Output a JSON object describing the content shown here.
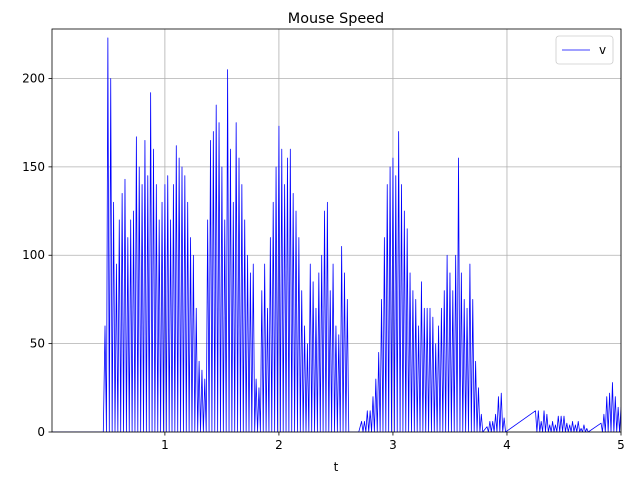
{
  "chart_data": {
    "type": "line",
    "title": "Mouse Speed",
    "x_label": "t",
    "xlim": [
      0.01,
      5
    ],
    "ylim": [
      0,
      228
    ],
    "xticks": [
      1,
      2,
      3,
      4,
      5
    ],
    "yticks": [
      0,
      50,
      100,
      150,
      200
    ],
    "grid": true,
    "legend_loc": "upper right",
    "x": [
      0.01,
      0.46,
      0.475,
      0.4875,
      0.5,
      0.5125,
      0.525,
      0.5375,
      0.55,
      0.5625,
      0.575,
      0.5875,
      0.6,
      0.6125,
      0.625,
      0.6375,
      0.65,
      0.6625,
      0.675,
      0.6875,
      0.7,
      0.7125,
      0.725,
      0.7375,
      0.75,
      0.7625,
      0.775,
      0.7875,
      0.8,
      0.8125,
      0.825,
      0.8375,
      0.85,
      0.8625,
      0.875,
      0.8875,
      0.9,
      0.9125,
      0.925,
      0.9375,
      0.95,
      0.9625,
      0.975,
      0.9875,
      1,
      1.0125,
      1.025,
      1.0375,
      1.05,
      1.0625,
      1.075,
      1.0875,
      1.1,
      1.1125,
      1.125,
      1.1375,
      1.15,
      1.1625,
      1.175,
      1.1875,
      1.2,
      1.2125,
      1.225,
      1.2375,
      1.25,
      1.2625,
      1.275,
      1.2875,
      1.3,
      1.3125,
      1.325,
      1.3375,
      1.35,
      1.3625,
      1.375,
      1.3875,
      1.4,
      1.4125,
      1.425,
      1.4375,
      1.45,
      1.4625,
      1.475,
      1.4875,
      1.5,
      1.5125,
      1.525,
      1.5375,
      1.55,
      1.5625,
      1.575,
      1.5875,
      1.6,
      1.6125,
      1.625,
      1.6375,
      1.65,
      1.6625,
      1.675,
      1.6875,
      1.7,
      1.7125,
      1.725,
      1.7375,
      1.75,
      1.7625,
      1.775,
      1.7875,
      1.8,
      1.8125,
      1.825,
      1.8375,
      1.85,
      1.8625,
      1.875,
      1.8875,
      1.9,
      1.9125,
      1.925,
      1.9375,
      1.95,
      1.9625,
      1.975,
      1.9875,
      2,
      2.0125,
      2.025,
      2.0375,
      2.05,
      2.0625,
      2.075,
      2.0875,
      2.1,
      2.1125,
      2.125,
      2.1375,
      2.15,
      2.1625,
      2.175,
      2.1875,
      2.2,
      2.2125,
      2.225,
      2.2375,
      2.25,
      2.2625,
      2.275,
      2.2875,
      2.3,
      2.3125,
      2.325,
      2.3375,
      2.35,
      2.3625,
      2.375,
      2.3875,
      2.4,
      2.4125,
      2.425,
      2.4375,
      2.45,
      2.4625,
      2.475,
      2.4875,
      2.5,
      2.5125,
      2.525,
      2.5375,
      2.55,
      2.5625,
      2.575,
      2.5875,
      2.6,
      2.6125,
      2.625,
      2.7,
      2.725,
      2.7375,
      2.75,
      2.7625,
      2.775,
      2.7875,
      2.8,
      2.8125,
      2.825,
      2.8375,
      2.85,
      2.8625,
      2.875,
      2.8875,
      2.9,
      2.9125,
      2.925,
      2.9375,
      2.95,
      2.9625,
      2.975,
      2.9875,
      3,
      3.0125,
      3.025,
      3.0375,
      3.05,
      3.0625,
      3.075,
      3.0875,
      3.1,
      3.1125,
      3.125,
      3.1375,
      3.15,
      3.1625,
      3.175,
      3.1875,
      3.2,
      3.2125,
      3.225,
      3.2375,
      3.25,
      3.2625,
      3.275,
      3.2875,
      3.3,
      3.3125,
      3.325,
      3.3375,
      3.35,
      3.3625,
      3.375,
      3.3875,
      3.4,
      3.4125,
      3.425,
      3.4375,
      3.45,
      3.4625,
      3.475,
      3.4875,
      3.5,
      3.5125,
      3.525,
      3.5375,
      3.55,
      3.5625,
      3.575,
      3.5875,
      3.6,
      3.6125,
      3.625,
      3.6375,
      3.65,
      3.6625,
      3.675,
      3.6875,
      3.7,
      3.7125,
      3.725,
      3.7375,
      3.75,
      3.7625,
      3.775,
      3.7875,
      3.825,
      3.8375,
      3.85,
      3.8625,
      3.875,
      3.8875,
      3.9,
      3.9125,
      3.925,
      3.9375,
      3.95,
      3.9625,
      3.975,
      3.9875,
      4.25,
      4.2625,
      4.275,
      4.2875,
      4.3,
      4.3125,
      4.325,
      4.3375,
      4.35,
      4.3625,
      4.375,
      4.3875,
      4.4,
      4.4125,
      4.425,
      4.4375,
      4.45,
      4.4625,
      4.475,
      4.4875,
      4.5,
      4.5125,
      4.525,
      4.5375,
      4.55,
      4.5625,
      4.575,
      4.5875,
      4.6,
      4.6125,
      4.625,
      4.6375,
      4.65,
      4.6625,
      4.675,
      4.6875,
      4.7,
      4.7125,
      4.825,
      4.8375,
      4.85,
      4.8625,
      4.875,
      4.8875,
      4.9,
      4.9125,
      4.925,
      4.9375,
      4.95,
      4.9625,
      4.975,
      4.9875,
      5
    ],
    "series": [
      {
        "name": "v",
        "color": "#0000ff",
        "values": [
          0,
          0,
          60,
          0,
          223,
          0,
          200,
          0,
          130,
          0,
          95,
          0,
          120,
          0,
          135,
          0,
          143,
          0,
          110,
          0,
          120,
          0,
          125,
          0,
          167,
          0,
          150,
          0,
          140,
          0,
          165,
          0,
          145,
          0,
          192,
          0,
          160,
          0,
          140,
          0,
          120,
          0,
          130,
          0,
          140,
          0,
          145,
          0,
          120,
          0,
          140,
          0,
          162,
          0,
          155,
          0,
          150,
          0,
          145,
          0,
          130,
          0,
          110,
          0,
          100,
          0,
          70,
          0,
          40,
          0,
          35,
          0,
          30,
          0,
          120,
          0,
          165,
          0,
          170,
          0,
          185,
          0,
          175,
          0,
          150,
          0,
          120,
          0,
          205,
          0,
          160,
          0,
          130,
          0,
          175,
          0,
          155,
          0,
          140,
          0,
          120,
          0,
          100,
          0,
          90,
          0,
          95,
          0,
          30,
          0,
          25,
          0,
          80,
          0,
          95,
          0,
          70,
          0,
          110,
          0,
          130,
          0,
          150,
          0,
          173,
          0,
          160,
          0,
          140,
          0,
          155,
          0,
          160,
          0,
          135,
          0,
          125,
          0,
          110,
          0,
          80,
          0,
          60,
          0,
          50,
          0,
          95,
          0,
          85,
          0,
          70,
          0,
          90,
          0,
          100,
          0,
          125,
          0,
          130,
          0,
          80,
          0,
          95,
          0,
          60,
          0,
          55,
          0,
          105,
          0,
          90,
          0,
          75,
          0,
          0,
          0,
          6,
          0,
          6,
          0,
          12,
          0,
          12,
          0,
          20,
          0,
          30,
          0,
          45,
          0,
          75,
          0,
          110,
          0,
          140,
          0,
          150,
          0,
          155,
          0,
          145,
          0,
          170,
          0,
          140,
          0,
          125,
          0,
          115,
          0,
          90,
          0,
          80,
          0,
          75,
          0,
          60,
          0,
          85,
          0,
          70,
          0,
          70,
          0,
          70,
          0,
          65,
          0,
          50,
          0,
          60,
          0,
          70,
          0,
          80,
          0,
          100,
          0,
          90,
          0,
          80,
          0,
          100,
          0,
          155,
          0,
          90,
          0,
          75,
          0,
          70,
          0,
          95,
          0,
          75,
          0,
          40,
          0,
          25,
          0,
          10,
          0,
          3,
          0,
          6,
          0,
          6,
          0,
          10,
          0,
          20,
          0,
          22,
          0,
          8,
          0,
          12,
          0,
          12,
          0,
          6,
          0,
          12,
          0,
          10,
          0,
          4,
          0,
          6,
          0,
          4,
          0,
          9,
          0,
          9,
          0,
          9,
          0,
          5,
          0,
          4,
          0,
          6,
          0,
          4,
          0,
          6,
          0,
          2,
          0,
          4,
          0,
          2,
          0,
          5,
          0,
          10,
          0,
          20,
          0,
          22,
          0,
          28,
          0,
          20,
          0,
          14,
          0,
          14
        ]
      }
    ]
  }
}
